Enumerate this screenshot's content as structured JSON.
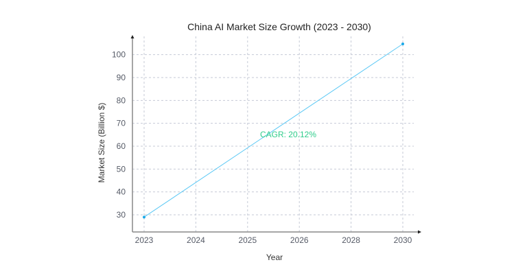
{
  "chart_data": {
    "type": "line",
    "title": "China AI Market Size Growth (2023 - 2030)",
    "xlabel": "Year",
    "ylabel": "Market Size (Billion $)",
    "categories": [
      "2023",
      "2024",
      "2025",
      "2026",
      "2028",
      "2030"
    ],
    "points": [
      {
        "x": "2023",
        "y": 29
      },
      {
        "x": "2030",
        "y": 104.7
      }
    ],
    "yticks": [
      30,
      40,
      50,
      60,
      70,
      80,
      90,
      100
    ],
    "ylim": [
      22.5,
      108
    ],
    "grid": true,
    "annotation": "CAGR: 20.12%",
    "colors": {
      "line": "#5ac8f5",
      "point": "#1aa9e8",
      "annotation": "#2ecc8a",
      "grid": "#c5cad6",
      "axis": "#888888",
      "text": "#555a66",
      "title": "#222222"
    }
  }
}
